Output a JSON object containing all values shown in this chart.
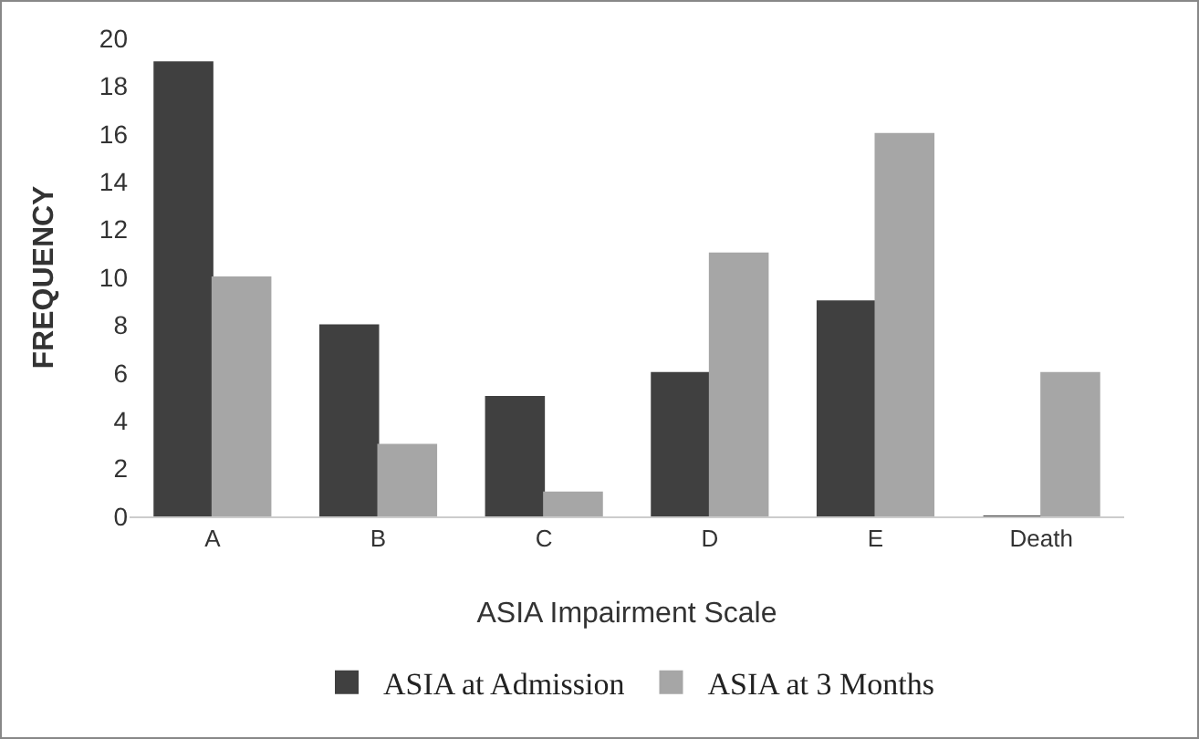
{
  "chart_data": {
    "type": "bar",
    "xlabel": "ASIA Impairment Scale",
    "ylabel": "FREQUENCY",
    "categories": [
      "A",
      "B",
      "C",
      "D",
      "E",
      "Death"
    ],
    "series": [
      {
        "name": "ASIA at Admission",
        "color": "#404040",
        "values": [
          19,
          8,
          5,
          6,
          9,
          0
        ]
      },
      {
        "name": "ASIA at 3 Months",
        "color": "#a6a6a6",
        "values": [
          10,
          3,
          1,
          11,
          16,
          6
        ]
      }
    ],
    "ylim": [
      0,
      20
    ],
    "yticks": [
      0,
      2,
      4,
      6,
      8,
      10,
      12,
      14,
      16,
      18,
      20
    ],
    "grid": false,
    "legend": "bottom"
  }
}
